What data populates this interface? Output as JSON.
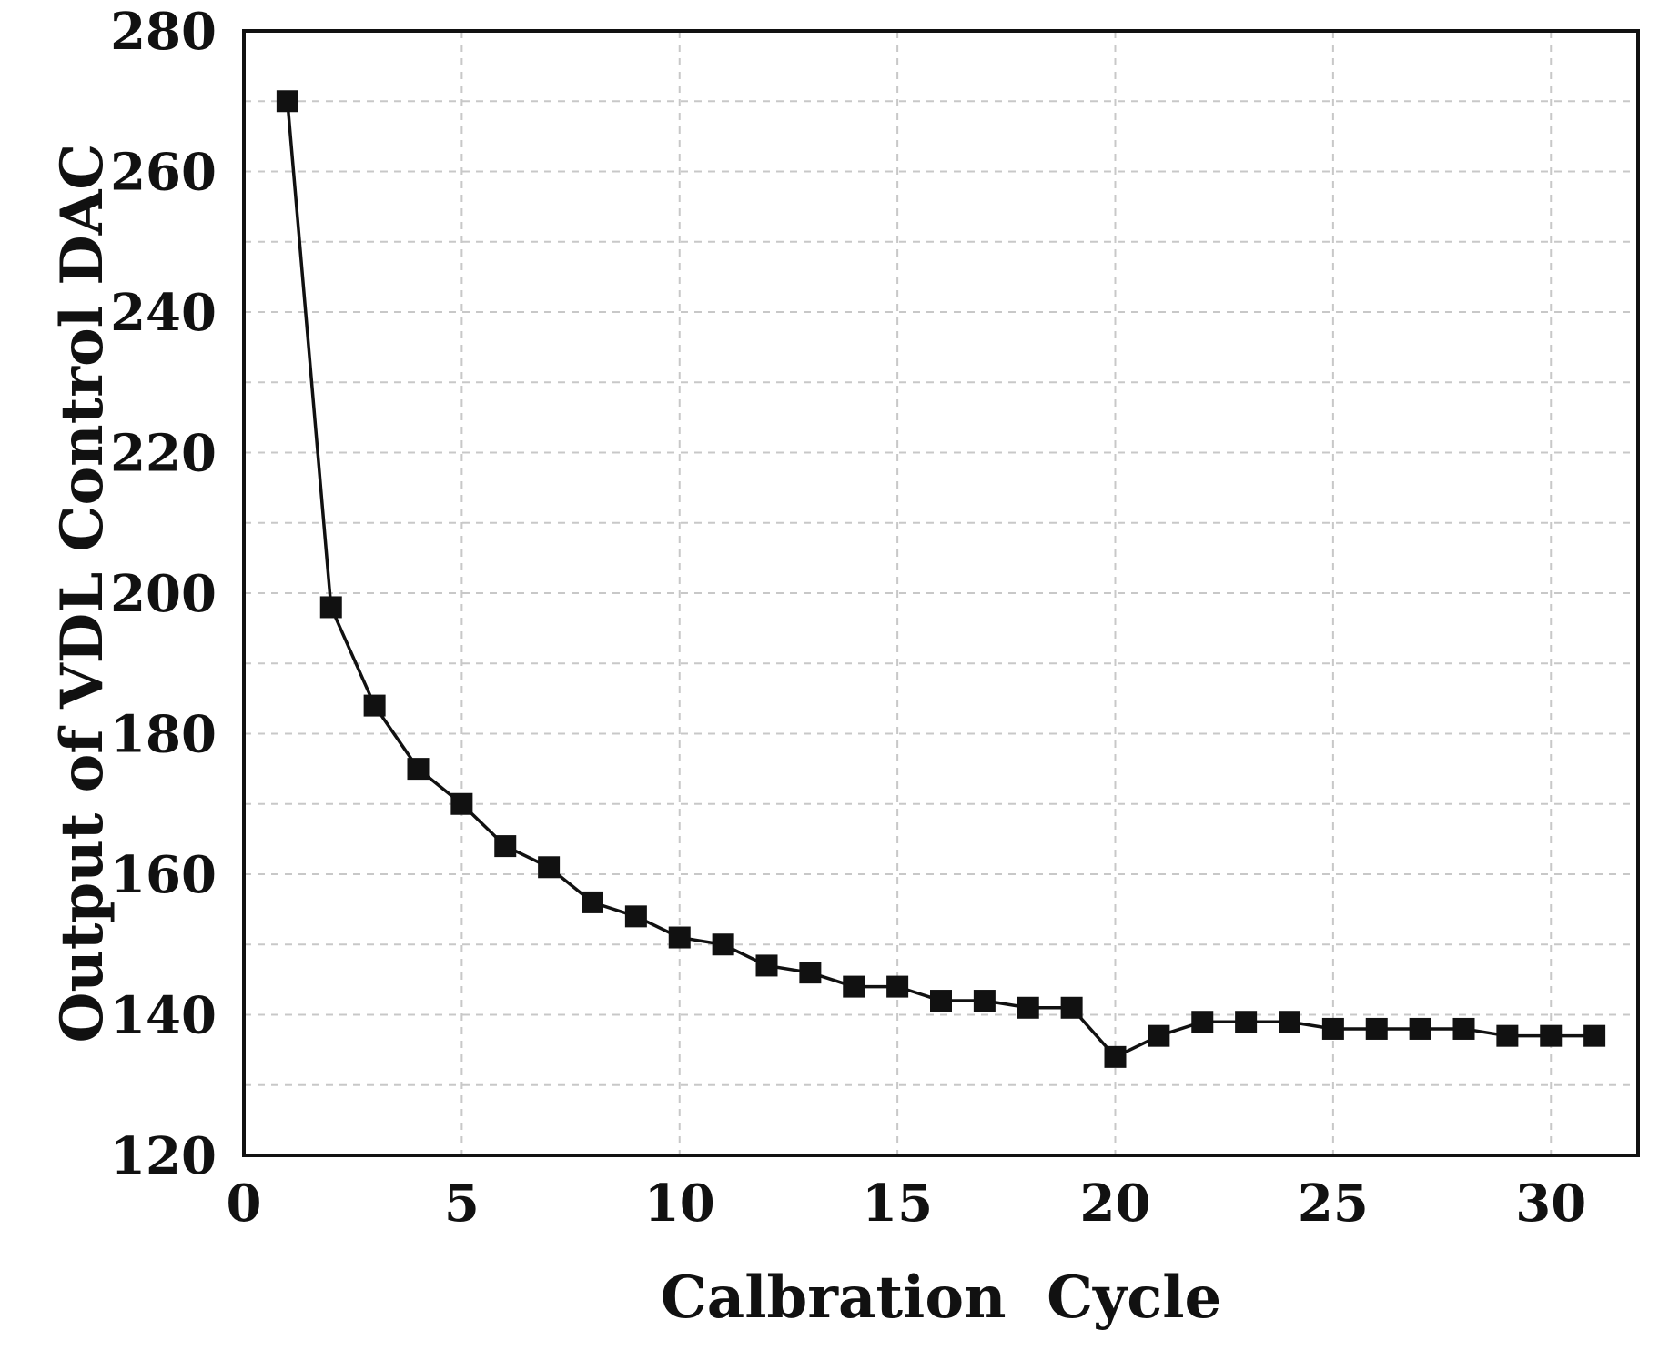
{
  "chart_data": {
    "type": "line",
    "title": "",
    "xlabel": "Calbration  Cycle",
    "ylabel": "Output of VDL Control DAC",
    "xlim": [
      0,
      32
    ],
    "ylim": [
      120,
      280
    ],
    "xticks": [
      0,
      5,
      10,
      15,
      20,
      25,
      30
    ],
    "yticks": [
      120,
      140,
      160,
      180,
      200,
      220,
      240,
      260,
      280
    ],
    "grid": true,
    "marker": "square",
    "color": "#111111",
    "series": [
      {
        "name": "VDL Control DAC",
        "x": [
          1,
          2,
          3,
          4,
          5,
          6,
          7,
          8,
          9,
          10,
          11,
          12,
          13,
          14,
          15,
          16,
          17,
          18,
          19,
          20,
          21,
          22,
          23,
          24,
          25,
          26,
          27,
          28,
          29,
          30,
          31
        ],
        "values": [
          270,
          198,
          184,
          175,
          170,
          164,
          161,
          156,
          154,
          151,
          150,
          147,
          146,
          144,
          144,
          142,
          142,
          141,
          141,
          134,
          137,
          139,
          139,
          139,
          138,
          138,
          138,
          138,
          137,
          137,
          137
        ]
      }
    ]
  }
}
